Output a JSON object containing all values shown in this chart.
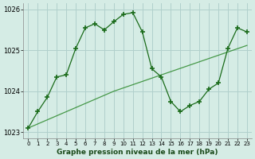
{
  "title": "Graphe pression niveau de la mer (hPa)",
  "bg_color": "#d5ece5",
  "grid_color": "#b0d0cc",
  "line_jagged_color": "#1a6b1a",
  "line_trend_color": "#2d8a2d",
  "x_values": [
    0,
    1,
    2,
    3,
    4,
    5,
    6,
    7,
    8,
    9,
    10,
    11,
    12,
    13,
    14,
    15,
    16,
    17,
    18,
    19,
    20,
    21,
    22,
    23
  ],
  "line_jagged_y": [
    1023.1,
    1023.5,
    1023.85,
    1024.35,
    1024.4,
    1025.05,
    1025.55,
    1025.65,
    1025.5,
    1025.7,
    1025.88,
    1025.92,
    1025.45,
    1024.55,
    1024.35,
    1023.75,
    1023.5,
    1023.65,
    1023.75,
    1024.05,
    1024.2,
    1025.05,
    1025.55,
    1025.45
  ],
  "line_trend_y": [
    1023.1,
    1023.2,
    1023.3,
    1023.4,
    1023.5,
    1023.6,
    1023.7,
    1023.8,
    1023.9,
    1024.0,
    1024.08,
    1024.16,
    1024.24,
    1024.32,
    1024.4,
    1024.48,
    1024.56,
    1024.64,
    1024.72,
    1024.8,
    1024.88,
    1024.96,
    1025.04,
    1025.12
  ],
  "ylim": [
    1022.85,
    1026.15
  ],
  "yticks": [
    1023,
    1024,
    1025,
    1026
  ],
  "xticks": [
    0,
    1,
    2,
    3,
    4,
    5,
    6,
    7,
    8,
    9,
    10,
    11,
    12,
    13,
    14,
    15,
    16,
    17,
    18,
    19,
    20,
    21,
    22,
    23
  ]
}
